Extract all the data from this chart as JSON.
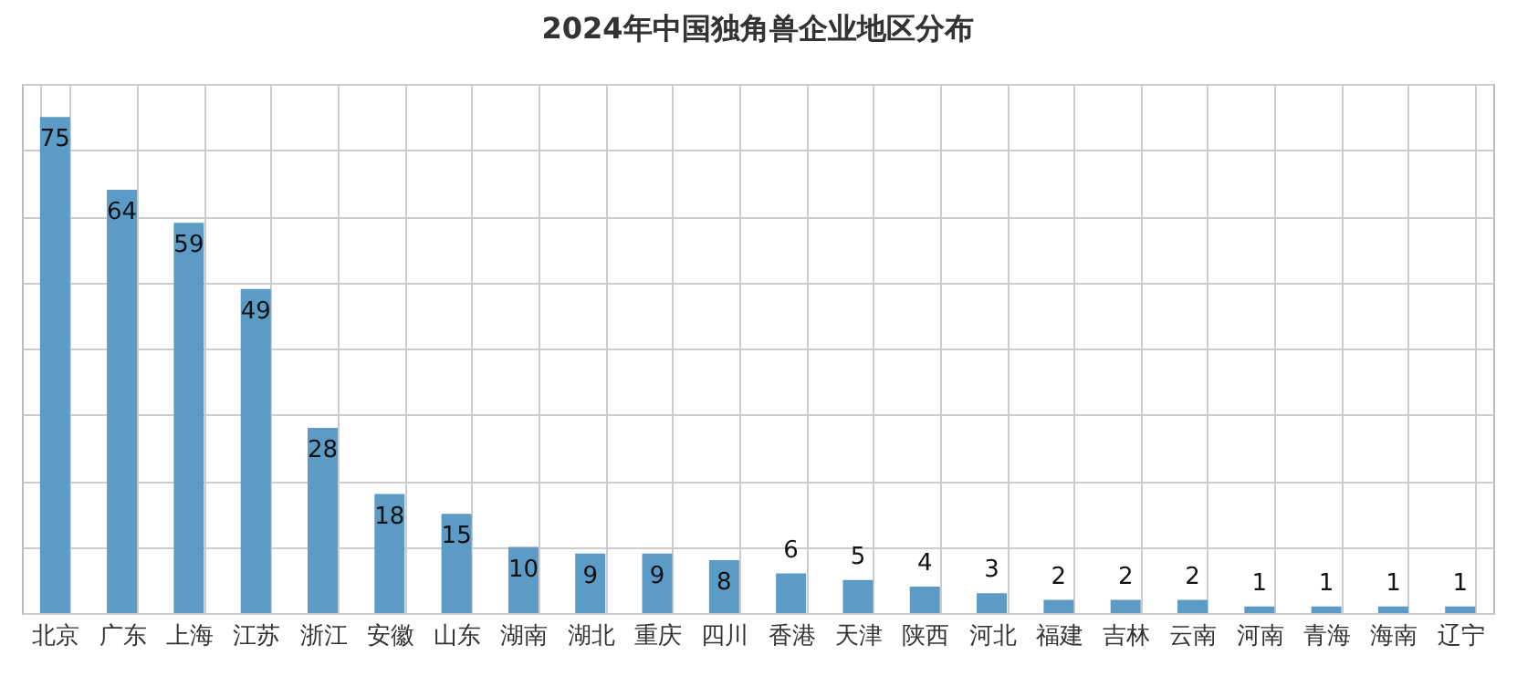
{
  "chart_data": {
    "type": "bar",
    "title": "2024年中国独角兽企业地区分布",
    "categories": [
      "北京",
      "广东",
      "上海",
      "江苏",
      "浙江",
      "安徽",
      "山东",
      "湖南",
      "湖北",
      "重庆",
      "四川",
      "香港",
      "天津",
      "陕西",
      "河北",
      "福建",
      "吉林",
      "云南",
      "河南",
      "青海",
      "海南",
      "辽宁"
    ],
    "values": [
      75,
      64,
      59,
      49,
      28,
      18,
      15,
      10,
      9,
      9,
      8,
      6,
      5,
      4,
      3,
      2,
      2,
      2,
      1,
      1,
      1,
      1
    ],
    "color": "#5b9bc6",
    "ylim": [
      0,
      80
    ],
    "yticks": [
      {
        "value": 0,
        "label": null
      },
      {
        "value": 10,
        "label": null
      },
      {
        "value": 20,
        "label": null
      },
      {
        "value": 30,
        "label": null
      },
      {
        "value": 40,
        "label": null
      },
      {
        "value": 50,
        "label": null
      },
      {
        "value": 60,
        "label": null
      },
      {
        "value": 70,
        "label": null
      },
      {
        "value": 80,
        "label": null
      }
    ],
    "grid": true,
    "data_labels": true,
    "tick_labels": "x"
  }
}
